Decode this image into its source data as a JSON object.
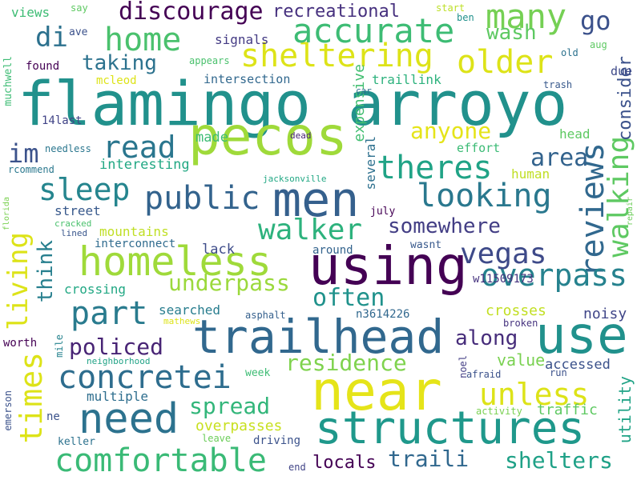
{
  "words": [
    {
      "text": "flamingo arroyo",
      "color": "#21918c"
    },
    {
      "text": "near",
      "color": "#e5e419"
    },
    {
      "text": "pecos",
      "color": "#9fda3a"
    },
    {
      "text": "homeless",
      "color": "#9fda3a"
    },
    {
      "text": "using",
      "color": "#440154"
    },
    {
      "text": "trailhead",
      "color": "#31688e"
    },
    {
      "text": "structures",
      "color": "#1f988b"
    },
    {
      "text": "men",
      "color": "#35608d"
    },
    {
      "text": "need",
      "color": "#2c728e"
    },
    {
      "text": "use",
      "color": "#21918c"
    },
    {
      "text": "sheltering",
      "color": "#dde318"
    },
    {
      "text": "accurate",
      "color": "#3dbc74"
    },
    {
      "text": "public",
      "color": "#33638d"
    },
    {
      "text": "many",
      "color": "#75d054"
    },
    {
      "text": "home",
      "color": "#4ac16d"
    },
    {
      "text": "older",
      "color": "#dde318"
    },
    {
      "text": "looking",
      "color": "#2a788e"
    },
    {
      "text": "living",
      "color": "#dde318"
    },
    {
      "text": "comfortable",
      "color": "#3aba76"
    },
    {
      "text": "concretei",
      "color": "#2e6d8e"
    },
    {
      "text": "theres",
      "color": "#20a386"
    },
    {
      "text": "reviews",
      "color": "#31688e"
    },
    {
      "text": "walking",
      "color": "#5ec962"
    },
    {
      "text": "walker",
      "color": "#2db27d"
    },
    {
      "text": "overpass",
      "color": "#26828e"
    },
    {
      "text": "vegas",
      "color": "#3e4a89"
    },
    {
      "text": "times",
      "color": "#dde318"
    },
    {
      "text": "unless",
      "color": "#dde318"
    },
    {
      "text": "part",
      "color": "#297b8e"
    },
    {
      "text": "read",
      "color": "#2a768e"
    },
    {
      "text": "sleep",
      "color": "#25858e"
    },
    {
      "text": "discourage",
      "color": "#440154"
    },
    {
      "text": "di",
      "color": "#2c718e"
    },
    {
      "text": "go",
      "color": "#3b518b"
    },
    {
      "text": "consider",
      "color": "#3b518b"
    },
    {
      "text": "underpass",
      "color": "#9bd93c"
    },
    {
      "text": "often",
      "color": "#20928c"
    },
    {
      "text": "policed",
      "color": "#482475"
    },
    {
      "text": "residence",
      "color": "#7fd34e"
    },
    {
      "text": "traili",
      "color": "#31688e"
    },
    {
      "text": "shelters",
      "color": "#1fa187"
    },
    {
      "text": "area",
      "color": "#33638d"
    },
    {
      "text": "im",
      "color": "#3b528b"
    },
    {
      "text": "taking",
      "color": "#2c728e"
    },
    {
      "text": "think",
      "color": "#277f8e"
    },
    {
      "text": "somewhere",
      "color": "#433e85"
    },
    {
      "text": "anyone",
      "color": "#e5e419"
    },
    {
      "text": "along",
      "color": "#472d7b"
    },
    {
      "text": "spread",
      "color": "#32b67a"
    },
    {
      "text": "wash",
      "color": "#5ec962"
    },
    {
      "text": "utility",
      "color": "#20a386"
    },
    {
      "text": "locals",
      "color": "#440154"
    },
    {
      "text": "recreational",
      "color": "#46307e"
    },
    {
      "text": "expensive",
      "color": "#42be71"
    },
    {
      "text": "several",
      "color": "#2d708e"
    },
    {
      "text": "value",
      "color": "#7ad151"
    },
    {
      "text": "noisy",
      "color": "#404688"
    },
    {
      "text": "crosses",
      "color": "#c2df23"
    },
    {
      "text": "accessed",
      "color": "#3b528b"
    },
    {
      "text": "traffic",
      "color": "#5ec962"
    },
    {
      "text": "mountains",
      "color": "#c0df25"
    },
    {
      "text": "interesting",
      "color": "#22a884"
    },
    {
      "text": "street",
      "color": "#38598c"
    },
    {
      "text": "lack",
      "color": "#3e4c8a"
    },
    {
      "text": "overpasses",
      "color": "#c8e020"
    },
    {
      "text": "multiple",
      "color": "#2e6e8e"
    },
    {
      "text": "crossing",
      "color": "#22a884"
    },
    {
      "text": "searched",
      "color": "#287d8e"
    },
    {
      "text": "made",
      "color": "#3dbc74"
    },
    {
      "text": "human",
      "color": "#c0df25"
    },
    {
      "text": "effort",
      "color": "#3bbb75"
    },
    {
      "text": "head",
      "color": "#5ec962"
    },
    {
      "text": "due",
      "color": "#3e4a89"
    },
    {
      "text": "around",
      "color": "#33638d"
    },
    {
      "text": "interconnect",
      "color": "#2f6b8e"
    },
    {
      "text": "signals",
      "color": "#443b84"
    },
    {
      "text": "intersection",
      "color": "#31688e"
    },
    {
      "text": "traillink",
      "color": "#2db27d"
    },
    {
      "text": "views",
      "color": "#3dbc74"
    },
    {
      "text": "found",
      "color": "#440154"
    },
    {
      "text": "mcleod",
      "color": "#dde318"
    },
    {
      "text": "appears",
      "color": "#4ac16d"
    },
    {
      "text": "n3614226",
      "color": "#31688e"
    },
    {
      "text": "w11509173",
      "color": "#46337f"
    },
    {
      "text": "wasnt",
      "color": "#38598c"
    },
    {
      "text": "july",
      "color": "#440154"
    },
    {
      "text": "14last",
      "color": "#414487"
    },
    {
      "text": "needless",
      "color": "#2a768e"
    },
    {
      "text": "rcommend",
      "color": "#2a788e"
    },
    {
      "text": "muchwell",
      "color": "#3dbc74"
    },
    {
      "text": "ave",
      "color": "#3b518b"
    },
    {
      "text": "say",
      "color": "#5ec962"
    },
    {
      "text": "start",
      "color": "#bddf26"
    },
    {
      "text": "ben",
      "color": "#21918c"
    },
    {
      "text": "old",
      "color": "#2c728e"
    },
    {
      "text": "aug",
      "color": "#5ec962"
    },
    {
      "text": "car",
      "color": "#2e6e8e"
    },
    {
      "text": "trash",
      "color": "#38598c"
    },
    {
      "text": "dead",
      "color": "#482475"
    },
    {
      "text": "jacksonville",
      "color": "#22a884"
    },
    {
      "text": "florida",
      "color": "#7ad151"
    },
    {
      "text": "repair",
      "color": "#6ccd5a"
    },
    {
      "text": "cracked",
      "color": "#4ac16d"
    },
    {
      "text": "lined",
      "color": "#39568c"
    },
    {
      "text": "asphalt",
      "color": "#35608d"
    },
    {
      "text": "mathews",
      "color": "#dde318"
    },
    {
      "text": "broken",
      "color": "#46337f"
    },
    {
      "text": "worth",
      "color": "#440154"
    },
    {
      "text": "mile",
      "color": "#25838e"
    },
    {
      "text": "neighborhood",
      "color": "#20a386"
    },
    {
      "text": "emerson",
      "color": "#3b528b"
    },
    {
      "text": "week",
      "color": "#3dbc74"
    },
    {
      "text": "noel",
      "color": "#433e85"
    },
    {
      "text": "afraid",
      "color": "#3b528b"
    },
    {
      "text": "run",
      "color": "#3b518b"
    },
    {
      "text": "activity",
      "color": "#7ad151"
    },
    {
      "text": "ne",
      "color": "#3b528b"
    },
    {
      "text": "keller",
      "color": "#2c728e"
    },
    {
      "text": "leave",
      "color": "#6ccd5a"
    },
    {
      "text": "driving",
      "color": "#3b528b"
    },
    {
      "text": "end",
      "color": "#414487"
    }
  ]
}
